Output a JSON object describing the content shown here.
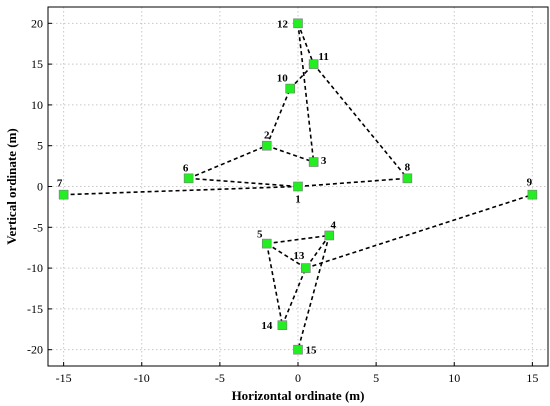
{
  "chart_data": {
    "type": "scatter",
    "title": "",
    "xlabel": "Horizontal ordinate (m)",
    "ylabel": "Vertical ordinate (m)",
    "xlim": [
      -16,
      16
    ],
    "ylim": [
      -22,
      22
    ],
    "xticks": [
      -15,
      -10,
      -5,
      0,
      5,
      10,
      15
    ],
    "yticks": [
      -20,
      -15,
      -10,
      -5,
      0,
      5,
      10,
      15,
      20
    ],
    "grid": true,
    "marker_color": "#22ee22",
    "line_color": "#000000",
    "points": [
      {
        "id": "1",
        "x": 0,
        "y": 0
      },
      {
        "id": "2",
        "x": -2,
        "y": 5
      },
      {
        "id": "3",
        "x": 1,
        "y": 3
      },
      {
        "id": "4",
        "x": 2,
        "y": -6
      },
      {
        "id": "5",
        "x": -2,
        "y": -7
      },
      {
        "id": "6",
        "x": -7,
        "y": 1
      },
      {
        "id": "7",
        "x": -15,
        "y": -1
      },
      {
        "id": "8",
        "x": 7,
        "y": 1
      },
      {
        "id": "9",
        "x": 15,
        "y": -1
      },
      {
        "id": "10",
        "x": -0.5,
        "y": 12
      },
      {
        "id": "11",
        "x": 1,
        "y": 15
      },
      {
        "id": "12",
        "x": 0,
        "y": 20
      },
      {
        "id": "13",
        "x": 0.5,
        "y": -10
      },
      {
        "id": "14",
        "x": -1,
        "y": -17
      },
      {
        "id": "15",
        "x": 0,
        "y": -20
      }
    ],
    "edges": [
      [
        "7",
        "1"
      ],
      [
        "1",
        "8"
      ],
      [
        "6",
        "1"
      ],
      [
        "6",
        "2"
      ],
      [
        "2",
        "3"
      ],
      [
        "2",
        "10"
      ],
      [
        "10",
        "11"
      ],
      [
        "12",
        "11"
      ],
      [
        "12",
        "3"
      ],
      [
        "11",
        "8"
      ],
      [
        "5",
        "4"
      ],
      [
        "5",
        "14"
      ],
      [
        "5",
        "13"
      ],
      [
        "4",
        "13"
      ],
      [
        "4",
        "15"
      ],
      [
        "14",
        "13"
      ],
      [
        "13",
        "9"
      ]
    ]
  }
}
